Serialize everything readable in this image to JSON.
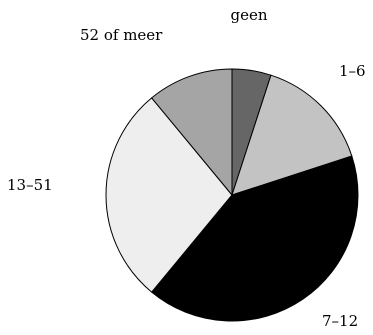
{
  "chart_data": {
    "type": "pie",
    "title": "",
    "categories": [
      "geen",
      "1–6",
      "7–12",
      "13–51",
      "52 of meer"
    ],
    "values": [
      5,
      15,
      41,
      28,
      11
    ],
    "unit": "%",
    "colors": [
      "#666666",
      "#c3c3c3",
      "#000000",
      "#eeeeee",
      "#a5a5a5"
    ],
    "start_angle": "12 o'clock",
    "direction": "clockwise",
    "labels_outside": true
  }
}
